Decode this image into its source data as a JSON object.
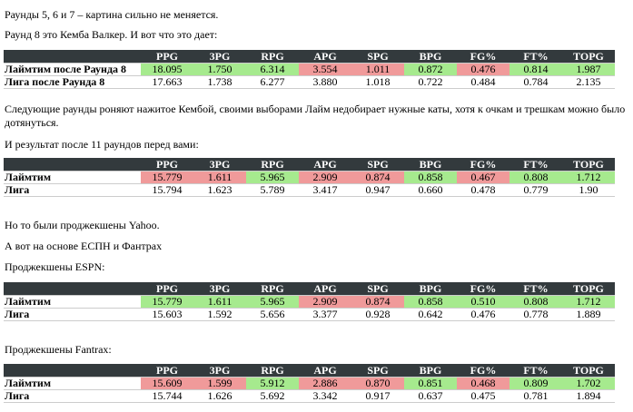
{
  "paragraphs": {
    "p1": "Раунды 5, 6 и 7 – картина сильно не меняется.",
    "p2": "Раунд 8 это Кемба Валкер. И вот что это дает:",
    "p3": "Следующие раунды роняют нажитое Кембой, своими выборами Лайм недобирает нужные каты, хотя к очкам и трешкам можно было дотянуться.",
    "p4": "И результат после 11 раундов перед вами:",
    "p5": "Но то были проджекшены Yahoo.",
    "p6": "А вот на основе ЕСПН и Фантрах",
    "p7": "Проджекшены ESPN:",
    "p8": "Проджекшены Fantrax:"
  },
  "headers": [
    "PPG",
    "3PG",
    "RPG",
    "APG",
    "SPG",
    "BPG",
    "FG%",
    "FT%",
    "TOPG"
  ],
  "colors": {
    "header_bg": "#333a3d",
    "good": "#a6ea8e",
    "bad": "#f09a9a"
  },
  "tables": [
    {
      "rows": [
        {
          "name": "Лаймтим после Раунда 8",
          "values": [
            "18.095",
            "1.750",
            "6.314",
            "3.554",
            "1.011",
            "0.872",
            "0.476",
            "0.814",
            "1.987"
          ],
          "marks": [
            "g",
            "g",
            "g",
            "r",
            "r",
            "g",
            "r",
            "g",
            "g"
          ]
        },
        {
          "name": "Лига после Раунда 8",
          "values": [
            "17.663",
            "1.738",
            "6.277",
            "3.880",
            "1.018",
            "0.722",
            "0.484",
            "0.784",
            "2.135"
          ]
        }
      ]
    },
    {
      "rows": [
        {
          "name": "Лаймтим",
          "values": [
            "15.779",
            "1.611",
            "5.965",
            "2.909",
            "0.874",
            "0.858",
            "0.467",
            "0.808",
            "1.712"
          ],
          "marks": [
            "r",
            "r",
            "g",
            "r",
            "r",
            "g",
            "r",
            "g",
            "g"
          ]
        },
        {
          "name": "Лига",
          "values": [
            "15.794",
            "1.623",
            "5.789",
            "3.417",
            "0.947",
            "0.660",
            "0.478",
            "0.779",
            "1.90"
          ]
        }
      ]
    },
    {
      "rows": [
        {
          "name": "Лаймтим",
          "values": [
            "15.779",
            "1.611",
            "5.965",
            "2.909",
            "0.874",
            "0.858",
            "0.510",
            "0.808",
            "1.712"
          ],
          "marks": [
            "g",
            "g",
            "g",
            "r",
            "r",
            "g",
            "g",
            "g",
            "g"
          ]
        },
        {
          "name": "Лига",
          "values": [
            "15.603",
            "1.592",
            "5.656",
            "3.377",
            "0.928",
            "0.642",
            "0.476",
            "0.778",
            "1.889"
          ]
        }
      ]
    },
    {
      "rows": [
        {
          "name": "Лаймтим",
          "values": [
            "15.609",
            "1.599",
            "5.912",
            "2.886",
            "0.870",
            "0.851",
            "0.468",
            "0.809",
            "1.702"
          ],
          "marks": [
            "r",
            "r",
            "g",
            "r",
            "r",
            "g",
            "r",
            "g",
            "g"
          ]
        },
        {
          "name": "Лига",
          "values": [
            "15.744",
            "1.626",
            "5.692",
            "3.342",
            "0.917",
            "0.637",
            "0.475",
            "0.781",
            "1.894"
          ]
        }
      ]
    }
  ]
}
